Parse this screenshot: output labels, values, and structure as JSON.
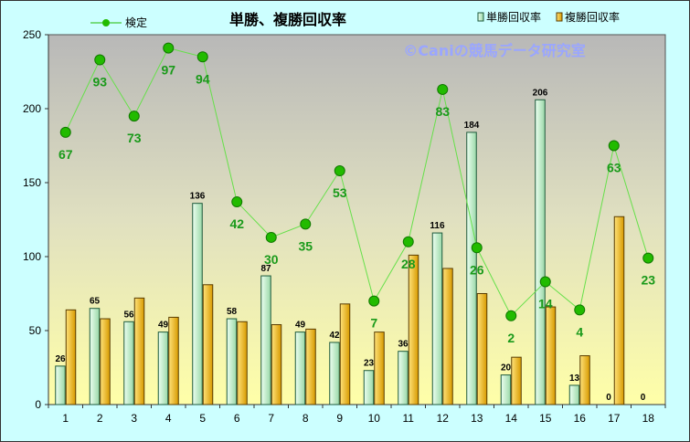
{
  "chart_data": {
    "type": "bar",
    "title": "単勝、複勝回収率",
    "watermark": "©Caniの競馬データ研究室",
    "categories": [
      "1",
      "2",
      "3",
      "4",
      "5",
      "6",
      "7",
      "8",
      "9",
      "10",
      "11",
      "12",
      "13",
      "14",
      "15",
      "16",
      "17",
      "18"
    ],
    "series": [
      {
        "name": "単勝回収率",
        "type": "bar",
        "color": "#c8f0c8",
        "border": "#1e5a3c",
        "values": [
          26,
          65,
          56,
          49,
          136,
          58,
          87,
          49,
          42,
          23,
          36,
          116,
          184,
          20,
          206,
          13,
          0,
          0
        ]
      },
      {
        "name": "複勝回収率",
        "type": "bar",
        "color": "#f0b400",
        "border": "#5a3c00",
        "values": [
          64,
          58,
          72,
          59,
          81,
          56,
          54,
          51,
          68,
          49,
          101,
          92,
          75,
          32,
          66,
          33,
          127,
          0
        ]
      },
      {
        "name": "検定",
        "type": "line",
        "color": "#22bb00",
        "values": [
          184,
          233,
          195,
          241,
          235,
          137,
          113,
          122,
          158,
          70,
          110,
          213,
          106,
          60,
          83,
          64,
          175,
          99
        ],
        "labels": [
          "67",
          "93",
          "73",
          "97",
          "94",
          "42",
          "30",
          "35",
          "53",
          "7",
          "28",
          "83",
          "26",
          "2",
          "14",
          "4",
          "63",
          "23"
        ]
      }
    ],
    "bar_labels": [
      "26",
      "65",
      "56",
      "49",
      "136",
      "58",
      "87",
      "49",
      "42",
      "23",
      "36",
      "116",
      "184",
      "20",
      "206",
      "13",
      "0",
      "0"
    ],
    "ylim": [
      0,
      250
    ],
    "yticks": [
      "0",
      "50",
      "100",
      "150",
      "200",
      "250"
    ],
    "legend_placement": "top",
    "grid": false
  }
}
